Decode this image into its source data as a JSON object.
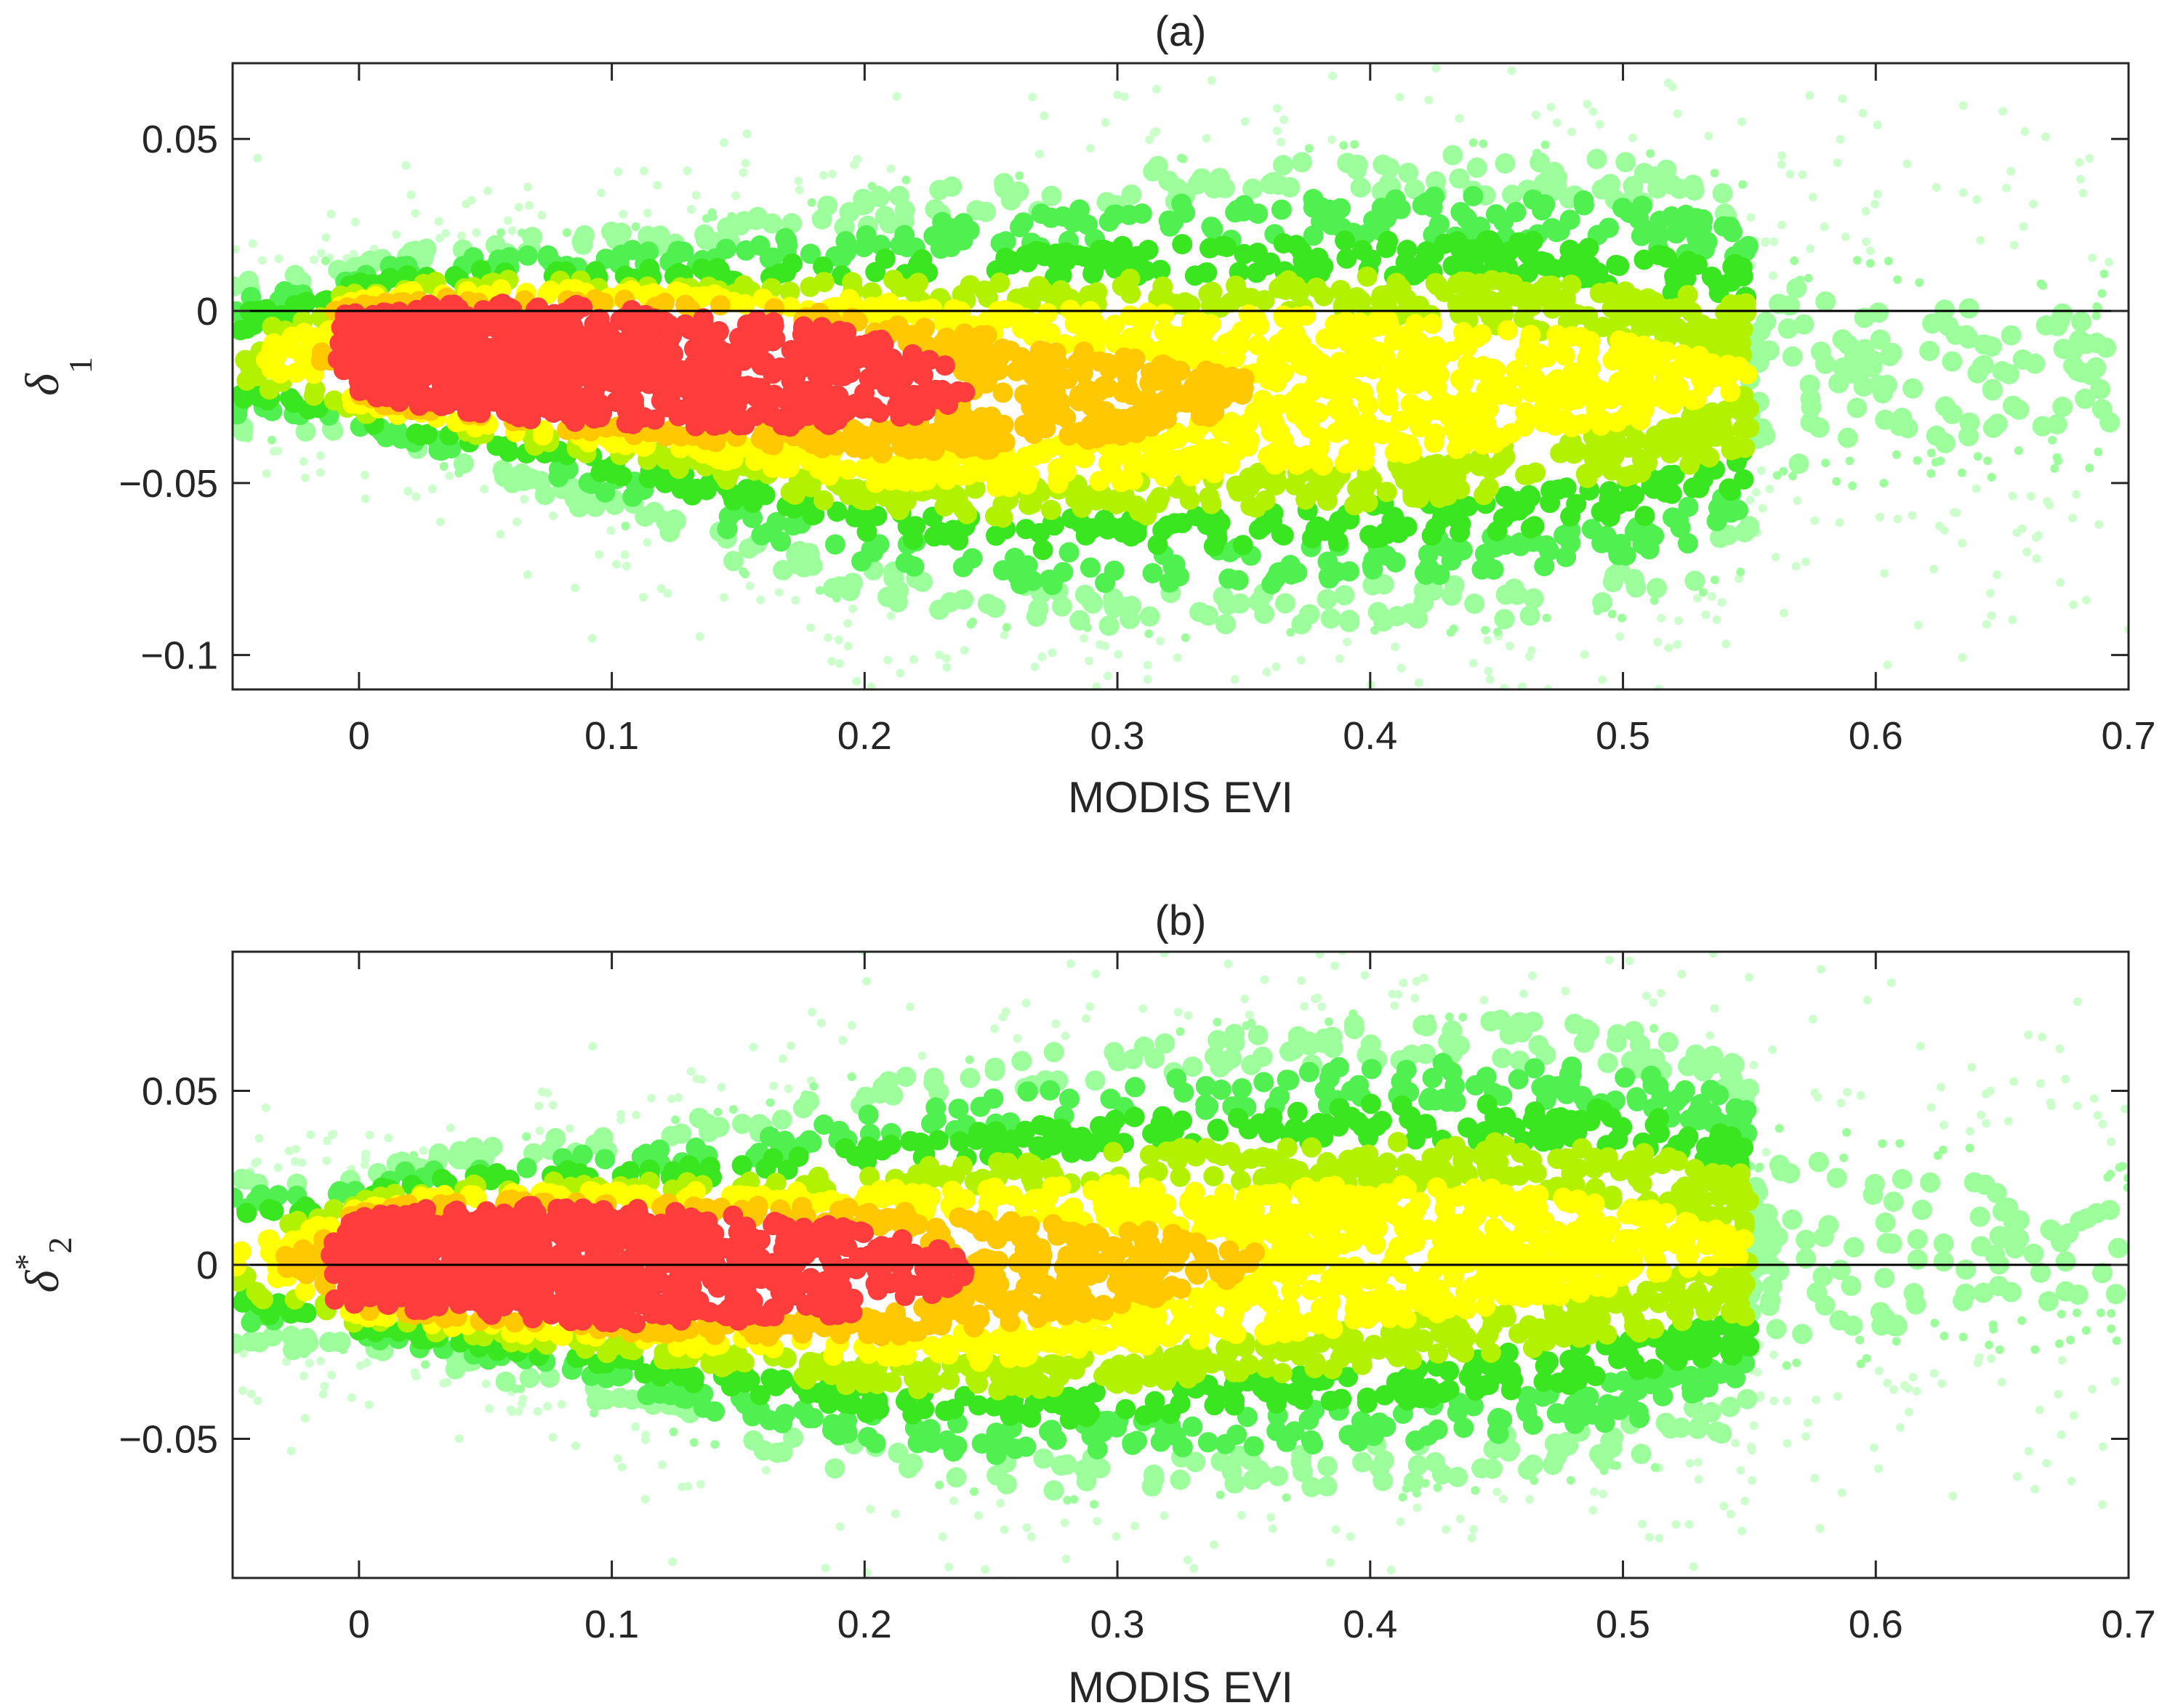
{
  "chart_data": [
    {
      "type": "scatter",
      "title": "(a)",
      "xlabel": "MODIS EVI",
      "ylabel": "δ1",
      "ylabel_symbol": "δ",
      "ylabel_subscript": "1",
      "ylabel_superscript": "",
      "xlim": [
        -0.05,
        0.7
      ],
      "ylim": [
        -0.11,
        0.072
      ],
      "xticks": [
        0,
        0.1,
        0.2,
        0.3,
        0.4,
        0.5,
        0.6,
        0.7
      ],
      "xtick_labels": [
        "0",
        "0.1",
        "0.2",
        "0.3",
        "0.4",
        "0.5",
        "0.6",
        "0.7"
      ],
      "yticks": [
        0.05,
        0,
        -0.05,
        -0.1
      ],
      "ytick_labels": [
        "0.05",
        "0",
        "−0.05",
        "−0.1"
      ],
      "reference_line_y": 0,
      "grid": false,
      "legend": "none",
      "density_ridge": {
        "x": [
          -0.01,
          0.0,
          0.02,
          0.05,
          0.1,
          0.15,
          0.2,
          0.25,
          0.3,
          0.35,
          0.4,
          0.45,
          0.5,
          0.53,
          0.56
        ],
        "y": [
          -0.01,
          -0.01,
          -0.011,
          -0.014,
          -0.019,
          -0.023,
          -0.025,
          -0.026,
          -0.025,
          -0.024,
          -0.023,
          -0.022,
          -0.021,
          -0.02,
          -0.018
        ],
        "spread": [
          0.01,
          0.012,
          0.015,
          0.018,
          0.022,
          0.026,
          0.03,
          0.033,
          0.035,
          0.036,
          0.037,
          0.037,
          0.036,
          0.033,
          0.028
        ]
      },
      "peak": {
        "x": 0.06,
        "y": -0.014
      },
      "colormap": [
        "#ccffcc",
        "#9cff9c",
        "#4ff04f",
        "#39e61f",
        "#b2f200",
        "#ffff00",
        "#ffc800",
        "#ff3d3d"
      ]
    },
    {
      "type": "scatter",
      "title": "(b)",
      "xlabel": "MODIS EVI",
      "ylabel": "δ2*",
      "ylabel_symbol": "δ",
      "ylabel_subscript": "2",
      "ylabel_superscript": "*",
      "xlim": [
        -0.05,
        0.7
      ],
      "ylim": [
        -0.09,
        0.09
      ],
      "xticks": [
        0,
        0.1,
        0.2,
        0.3,
        0.4,
        0.5,
        0.6,
        0.7
      ],
      "xtick_labels": [
        "0",
        "0.1",
        "0.2",
        "0.3",
        "0.4",
        "0.5",
        "0.6",
        "0.7"
      ],
      "yticks": [
        0.05,
        0,
        -0.05
      ],
      "ytick_labels": [
        "0.05",
        "0",
        "−0.05"
      ],
      "reference_line_y": 0,
      "grid": false,
      "legend": "none",
      "density_ridge": {
        "x": [
          -0.01,
          0.0,
          0.02,
          0.05,
          0.1,
          0.15,
          0.2,
          0.25,
          0.3,
          0.35,
          0.4,
          0.45,
          0.5,
          0.53,
          0.56
        ],
        "y": [
          0.0,
          0.001,
          0.002,
          0.001,
          -0.002,
          -0.004,
          -0.004,
          -0.003,
          -0.001,
          0.001,
          0.003,
          0.005,
          0.006,
          0.006,
          0.005
        ],
        "spread": [
          0.01,
          0.012,
          0.014,
          0.017,
          0.021,
          0.025,
          0.029,
          0.032,
          0.034,
          0.035,
          0.036,
          0.036,
          0.035,
          0.032,
          0.027
        ]
      },
      "peak": {
        "x": 0.05,
        "y": 0.001
      },
      "colormap": [
        "#ccffcc",
        "#9cff9c",
        "#4ff04f",
        "#39e61f",
        "#b2f200",
        "#ffff00",
        "#ffc800",
        "#ff3d3d"
      ]
    }
  ]
}
